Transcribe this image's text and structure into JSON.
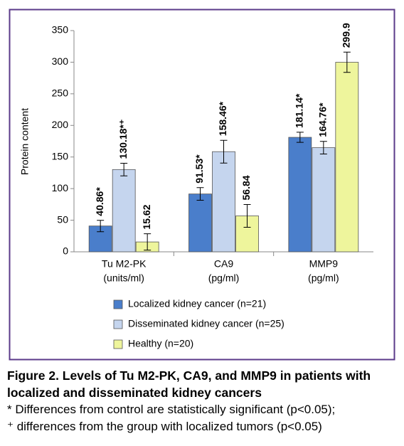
{
  "chart_data": {
    "type": "bar",
    "ylabel": "Protein content",
    "categories": [
      "Tu M2-PK",
      "CA9",
      "MMP9"
    ],
    "category_units": [
      "(units/ml)",
      "(pg/ml)",
      "(pg/ml)"
    ],
    "ylim": [
      0,
      350
    ],
    "yticks": [
      0,
      50,
      100,
      150,
      200,
      250,
      300,
      350
    ],
    "series": [
      {
        "name": "Localized kidney cancer (n=21)",
        "color": "#4a7ecb",
        "values": [
          40.86,
          91.53,
          181.14
        ],
        "errors": [
          9,
          10,
          8
        ],
        "value_labels": [
          "40.86*",
          "91.53*",
          "181.14*"
        ]
      },
      {
        "name": "Disseminated kidney cancer (n=25)",
        "color": "#c5d5ee",
        "values": [
          130.18,
          158.46,
          164.76
        ],
        "errors": [
          10,
          18,
          10
        ],
        "value_labels": [
          "130.18*⁺",
          "158.46*",
          "164.76*"
        ]
      },
      {
        "name": "Healthy (n=20)",
        "color": "#eef59c",
        "values": [
          15.62,
          56.84,
          299.9
        ],
        "errors": [
          13,
          18,
          16
        ],
        "value_labels": [
          "15.62",
          "56.84",
          "299.9"
        ]
      }
    ]
  },
  "caption": {
    "title": "Figure 2. Levels of Tu M2-PK, CA9, and MMP9 in patients with localized and disseminated kidney cancers",
    "notes": [
      "* Differences from control are statistically significant (p<0.05);",
      "⁺ differences from the group with localized tumors (p<0.05)"
    ]
  }
}
